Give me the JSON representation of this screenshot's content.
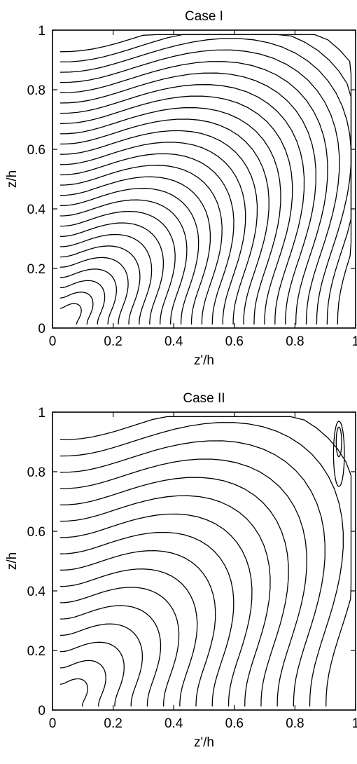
{
  "chart_data": [
    {
      "type": "contour",
      "title": "Case I",
      "xlabel": "z'/h",
      "ylabel": "z/h",
      "xlim": [
        0,
        1
      ],
      "ylim": [
        0,
        1
      ],
      "xticks": [
        "0",
        "0.2",
        "0.4",
        "0.6",
        "0.8",
        "1"
      ],
      "yticks": [
        "0",
        "0.2",
        "0.4",
        "0.6",
        "0.8",
        "1"
      ],
      "contour_lines": 26,
      "feature": "contour lines converge toward the lower-left corner and peak along the diagonal z = z'"
    },
    {
      "type": "contour",
      "title": "Case II",
      "xlabel": "z'/h",
      "ylabel": "z/h",
      "xlim": [
        0,
        1
      ],
      "ylim": [
        0,
        1
      ],
      "xticks": [
        "0",
        "0.2",
        "0.4",
        "0.6",
        "0.8",
        "1"
      ],
      "yticks": [
        "0",
        "0.2",
        "0.4",
        "0.6",
        "0.8",
        "1"
      ],
      "contour_lines": 16,
      "feature": "contour lines converge toward the lower-left corner with a closed loop near z' = 0.95, z/h = 0.9"
    }
  ]
}
